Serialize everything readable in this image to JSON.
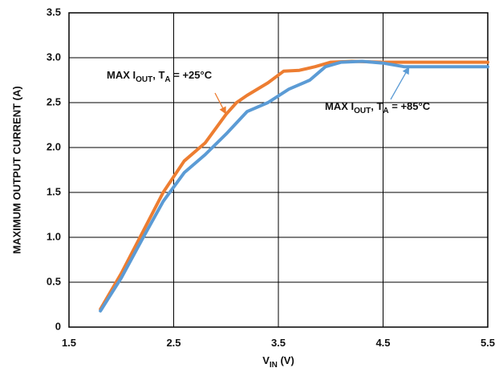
{
  "chart_data": {
    "type": "line",
    "title": "",
    "xlabel": {
      "main": "V",
      "sub": "IN",
      "unit": " (V)"
    },
    "ylabel": "MAXIMUM OUTPUT CURRENT (A)",
    "xlim": [
      1.5,
      5.5
    ],
    "ylim": [
      0,
      3.5
    ],
    "xticks": [
      "1.5",
      "2.5",
      "3.5",
      "4.5",
      "5.5"
    ],
    "yticks": [
      "0",
      "0.5",
      "1.0",
      "1.5",
      "2.0",
      "2.5",
      "3.0",
      "3.5"
    ],
    "grid": true,
    "series": [
      {
        "name": "MAX IOUT, TA = +25°C",
        "color": "#ED7D31",
        "x": [
          1.8,
          2.0,
          2.2,
          2.4,
          2.6,
          2.8,
          3.0,
          3.1,
          3.2,
          3.4,
          3.55,
          3.7,
          3.85,
          4.0,
          4.2,
          4.5,
          5.0,
          5.5
        ],
        "y": [
          0.2,
          0.6,
          1.05,
          1.5,
          1.85,
          2.05,
          2.37,
          2.5,
          2.58,
          2.72,
          2.85,
          2.86,
          2.9,
          2.95,
          2.96,
          2.95,
          2.95,
          2.95
        ]
      },
      {
        "name": "MAX IOUT, TA = +85°C",
        "color": "#5B9BD5",
        "x": [
          1.8,
          2.0,
          2.2,
          2.4,
          2.6,
          2.8,
          3.0,
          3.2,
          3.4,
          3.6,
          3.8,
          3.95,
          4.1,
          4.3,
          4.5,
          4.7,
          5.0,
          5.5
        ],
        "y": [
          0.18,
          0.55,
          0.98,
          1.4,
          1.72,
          1.92,
          2.15,
          2.4,
          2.5,
          2.65,
          2.75,
          2.9,
          2.95,
          2.96,
          2.94,
          2.9,
          2.9,
          2.9
        ]
      }
    ],
    "annotations": [
      {
        "series": 0,
        "text_main": "MAX I",
        "text_sub1": "OUT",
        "text_mid": ", T",
        "text_sub2": "A",
        "text_end": " = +25°C",
        "arrow_to": [
          3.0,
          2.37
        ]
      },
      {
        "series": 1,
        "text_main": "MAX I",
        "text_sub1": "OUT",
        "text_mid": ", T",
        "text_sub2": "A",
        "text_end": " = +85°C",
        "arrow_to": [
          4.75,
          2.9
        ]
      }
    ]
  }
}
